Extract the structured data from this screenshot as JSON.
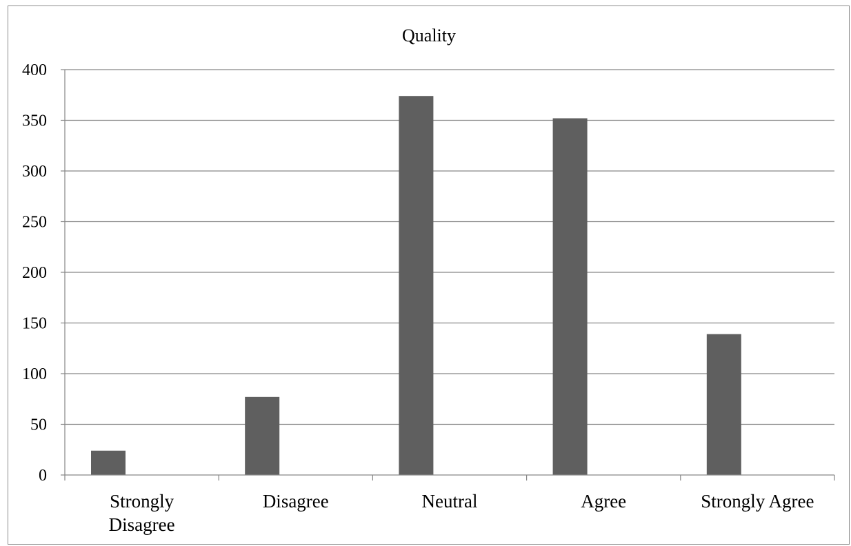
{
  "chart_data": {
    "type": "bar",
    "title": "Quality",
    "xlabel": "",
    "ylabel": "",
    "categories": [
      [
        "Strongly",
        "Disagree"
      ],
      [
        "Disagree"
      ],
      [
        "Neutral"
      ],
      [
        "Agree"
      ],
      [
        "Strongly Agree"
      ]
    ],
    "values": [
      24,
      77,
      374,
      352,
      139
    ],
    "ylim": [
      0,
      400
    ],
    "yticks": [
      "0",
      "50",
      "100",
      "150",
      "200",
      "250",
      "300",
      "350",
      "400"
    ],
    "ytick_values": [
      0,
      50,
      100,
      150,
      200,
      250,
      300,
      350,
      400
    ],
    "grid": true,
    "legend": "none",
    "colors": {
      "bar": "#5f5f5f",
      "grid": "#868686",
      "axis": "#868686",
      "frame": "#8a8a8a"
    }
  }
}
